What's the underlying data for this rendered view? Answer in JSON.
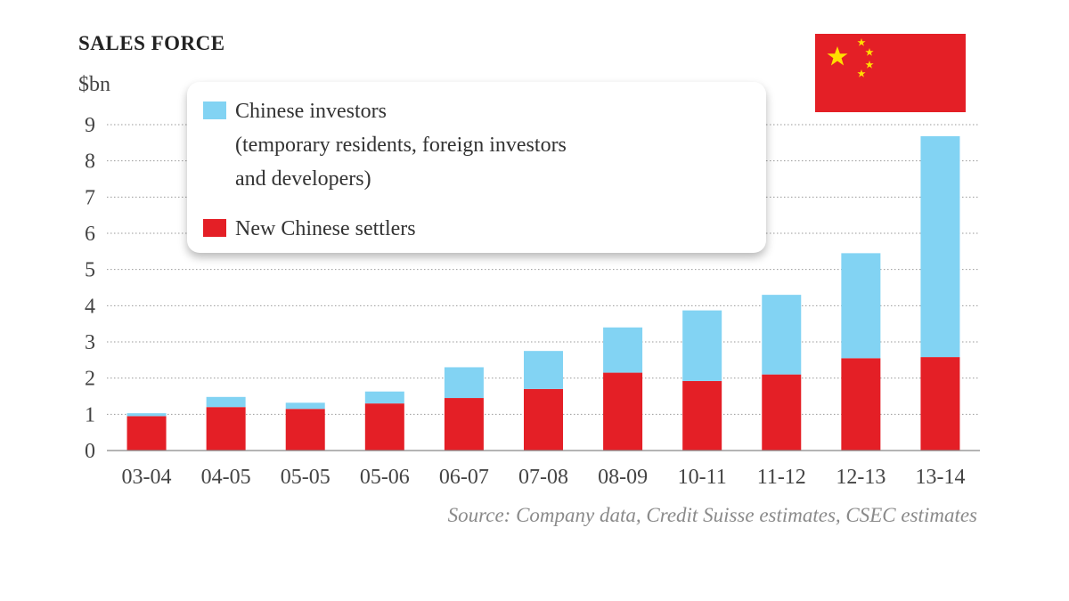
{
  "chart_data": {
    "type": "bar",
    "stacked": true,
    "title": "SALES FORCE",
    "ylabel": "$bn",
    "xlabel": "",
    "ylim": [
      0,
      9
    ],
    "yticks": [
      0,
      1,
      2,
      3,
      4,
      5,
      6,
      7,
      8,
      9
    ],
    "grid": true,
    "categories": [
      "03-04",
      "04-05",
      "05-05",
      "05-06",
      "06-07",
      "07-08",
      "08-09",
      "10-11",
      "11-12",
      "12-13",
      "13-14"
    ],
    "series": [
      {
        "name": "New Chinese settlers",
        "color": "#e41f26",
        "values": [
          0.95,
          1.2,
          1.15,
          1.3,
          1.45,
          1.7,
          2.15,
          1.92,
          2.1,
          2.55,
          2.58
        ]
      },
      {
        "name": "Chinese investors",
        "color": "#82d3f3",
        "values": [
          0.08,
          0.28,
          0.17,
          0.33,
          0.85,
          1.05,
          1.25,
          1.95,
          2.2,
          2.9,
          6.1
        ]
      }
    ],
    "legend": {
      "position": "top-left",
      "items": [
        {
          "label_lines": [
            "Chinese investors",
            "(temporary residents, foreign investors",
            "and developers)"
          ],
          "color": "#82d3f3"
        },
        {
          "label_lines": [
            "New Chinese settlers"
          ],
          "color": "#e41f26"
        }
      ]
    },
    "source": "Source:  Company data, Credit Suisse estimates, CSEC estimates"
  },
  "flag": {
    "name": "flag-of-china",
    "field_color": "#e41f26",
    "star_color": "#ffde00"
  }
}
